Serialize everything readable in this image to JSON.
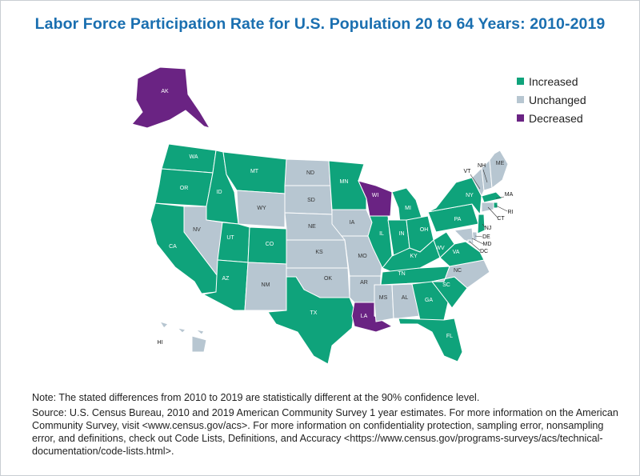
{
  "title": "Labor Force Participation Rate for U.S. Population 20 to 64 Years: 2010-2019",
  "colors": {
    "increased": "#0fa37b",
    "unchanged": "#b7c6d1",
    "decreased": "#6a2383",
    "border": "#ffffff"
  },
  "legend": [
    {
      "key": "increased",
      "label": "Increased"
    },
    {
      "key": "unchanged",
      "label": "Unchanged"
    },
    {
      "key": "decreased",
      "label": "Decreased"
    }
  ],
  "states": [
    {
      "abbr": "AK",
      "status": "decreased"
    },
    {
      "abbr": "HI",
      "status": "unchanged"
    },
    {
      "abbr": "WA",
      "status": "increased"
    },
    {
      "abbr": "OR",
      "status": "increased"
    },
    {
      "abbr": "CA",
      "status": "increased"
    },
    {
      "abbr": "ID",
      "status": "increased"
    },
    {
      "abbr": "NV",
      "status": "unchanged"
    },
    {
      "abbr": "MT",
      "status": "increased"
    },
    {
      "abbr": "WY",
      "status": "unchanged"
    },
    {
      "abbr": "UT",
      "status": "increased"
    },
    {
      "abbr": "AZ",
      "status": "increased"
    },
    {
      "abbr": "CO",
      "status": "increased"
    },
    {
      "abbr": "NM",
      "status": "unchanged"
    },
    {
      "abbr": "ND",
      "status": "unchanged"
    },
    {
      "abbr": "SD",
      "status": "unchanged"
    },
    {
      "abbr": "NE",
      "status": "unchanged"
    },
    {
      "abbr": "KS",
      "status": "unchanged"
    },
    {
      "abbr": "OK",
      "status": "unchanged"
    },
    {
      "abbr": "TX",
      "status": "increased"
    },
    {
      "abbr": "MN",
      "status": "increased"
    },
    {
      "abbr": "IA",
      "status": "unchanged"
    },
    {
      "abbr": "MO",
      "status": "unchanged"
    },
    {
      "abbr": "AR",
      "status": "unchanged"
    },
    {
      "abbr": "LA",
      "status": "decreased"
    },
    {
      "abbr": "WI",
      "status": "decreased"
    },
    {
      "abbr": "IL",
      "status": "increased"
    },
    {
      "abbr": "MI",
      "status": "increased"
    },
    {
      "abbr": "IN",
      "status": "increased"
    },
    {
      "abbr": "OH",
      "status": "increased"
    },
    {
      "abbr": "KY",
      "status": "increased"
    },
    {
      "abbr": "TN",
      "status": "increased"
    },
    {
      "abbr": "MS",
      "status": "unchanged"
    },
    {
      "abbr": "AL",
      "status": "unchanged"
    },
    {
      "abbr": "GA",
      "status": "increased"
    },
    {
      "abbr": "FL",
      "status": "increased"
    },
    {
      "abbr": "SC",
      "status": "increased"
    },
    {
      "abbr": "NC",
      "status": "unchanged"
    },
    {
      "abbr": "VA",
      "status": "increased"
    },
    {
      "abbr": "WV",
      "status": "increased"
    },
    {
      "abbr": "PA",
      "status": "increased"
    },
    {
      "abbr": "NY",
      "status": "increased"
    },
    {
      "abbr": "VT",
      "status": "unchanged"
    },
    {
      "abbr": "NH",
      "status": "unchanged"
    },
    {
      "abbr": "ME",
      "status": "unchanged"
    },
    {
      "abbr": "MA",
      "status": "increased"
    },
    {
      "abbr": "RI",
      "status": "increased"
    },
    {
      "abbr": "CT",
      "status": "unchanged"
    },
    {
      "abbr": "NJ",
      "status": "increased"
    },
    {
      "abbr": "DE",
      "status": "unchanged"
    },
    {
      "abbr": "MD",
      "status": "unchanged"
    },
    {
      "abbr": "DC",
      "status": "unchanged"
    }
  ],
  "notes": {
    "note": "Note: The stated differences from 2010 to 2019 are statistically different at the 90% confidence level.",
    "source": "Source: U.S. Census Bureau, 2010 and 2019 American Community Survey 1 year estimates. For more information on the American Community Survey, visit <www.census.gov/acs>. For more information on confidentiality protection, sampling error, nonsampling error, and definitions, check out Code Lists, Definitions, and Accuracy <https://www.census.gov/programs-surveys/acs/technical-documentation/code-lists.html>."
  }
}
